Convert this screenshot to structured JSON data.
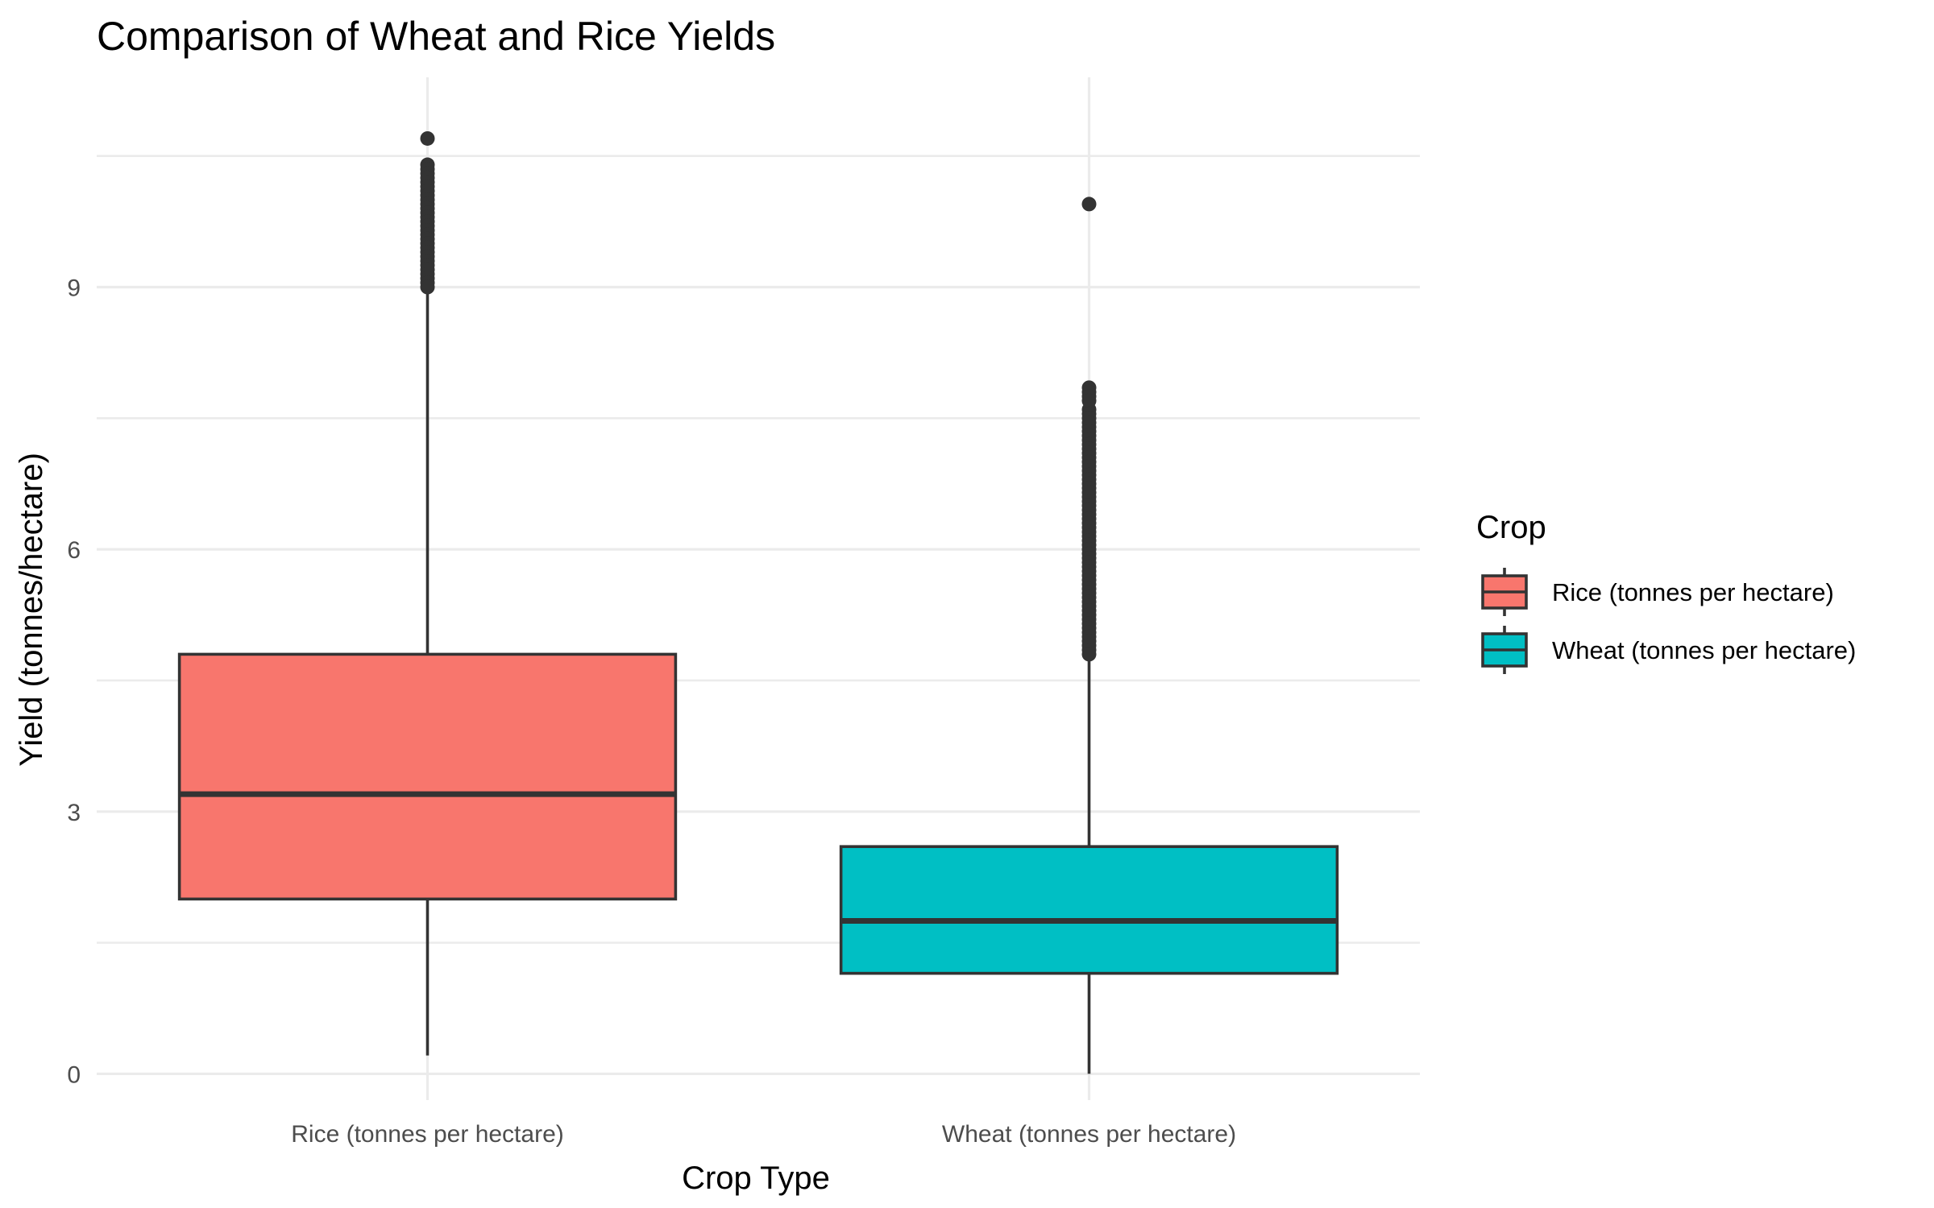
{
  "chart_data": {
    "type": "box",
    "title": "Comparison of Wheat and Rice Yields",
    "xlabel": "Crop Type",
    "ylabel": "Yield (tonnes/hectare)",
    "ylim": [
      -0.3,
      11.4
    ],
    "yticks": [
      0,
      3,
      6,
      9
    ],
    "categories": [
      "Rice (tonnes per hectare)",
      "Wheat (tonnes per hectare)"
    ],
    "legend": {
      "title": "Crop",
      "placement": "right",
      "entries": [
        "Rice (tonnes per hectare)",
        "Wheat (tonnes per hectare)"
      ]
    },
    "grid": true,
    "series": [
      {
        "category": "Rice (tonnes per hectare)",
        "color": "#F8766D",
        "whisker_low": 0.21,
        "q1": 2.0,
        "median": 3.2,
        "q3": 4.8,
        "whisker_high": 9.0,
        "outliers": [
          10.7,
          10.4,
          10.35,
          10.3,
          10.25,
          10.2,
          10.15,
          10.1,
          10.05,
          10.0,
          9.95,
          9.9,
          9.85,
          9.8,
          9.75,
          9.7,
          9.65,
          9.6,
          9.55,
          9.5,
          9.45,
          9.4,
          9.35,
          9.3,
          9.25,
          9.2,
          9.15,
          9.1,
          9.05,
          9.0
        ]
      },
      {
        "category": "Wheat (tonnes per hectare)",
        "color": "#00BFC4",
        "whisker_low": 0.0,
        "q1": 1.15,
        "median": 1.75,
        "q3": 2.6,
        "whisker_high": 4.75,
        "outliers": [
          9.95,
          7.85,
          7.8,
          7.75,
          7.7,
          7.6,
          7.55,
          7.5,
          7.45,
          7.4,
          7.35,
          7.3,
          7.25,
          7.2,
          7.15,
          7.1,
          7.05,
          7.0,
          6.95,
          6.9,
          6.85,
          6.8,
          6.75,
          6.7,
          6.65,
          6.6,
          6.55,
          6.5,
          6.45,
          6.4,
          6.35,
          6.3,
          6.25,
          6.2,
          6.15,
          6.1,
          6.05,
          6.0,
          5.95,
          5.9,
          5.85,
          5.8,
          5.75,
          5.7,
          5.65,
          5.6,
          5.55,
          5.5,
          5.45,
          5.4,
          5.35,
          5.3,
          5.25,
          5.2,
          5.15,
          5.1,
          5.05,
          5.0,
          4.95,
          4.9,
          4.85,
          4.8
        ]
      }
    ]
  }
}
